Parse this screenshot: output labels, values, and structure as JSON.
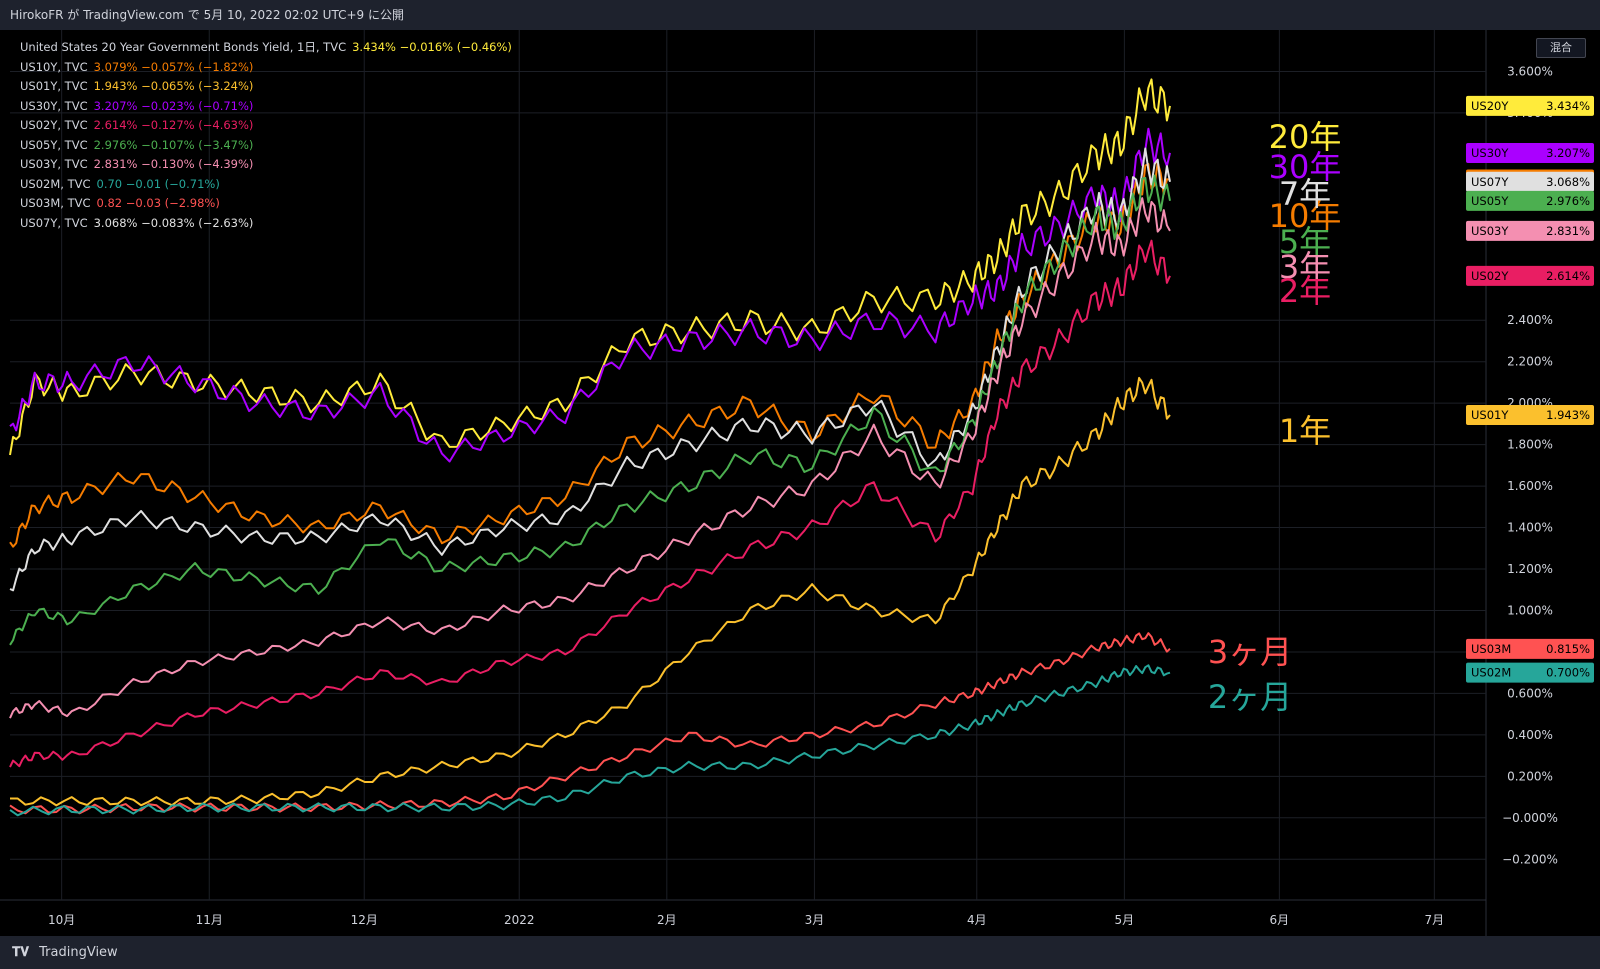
{
  "header": {
    "text": "HirokoFR が TradingView.com で 5月 10, 2022 02:02 UTC+9 に公開"
  },
  "footer": {
    "brand": "TradingView"
  },
  "toolbar": {
    "mixed_label": "混合"
  },
  "legend": [
    {
      "name": "United States 20 Year Government Bonds Yield, 1日, TVC",
      "value": "3.434%",
      "change": "−0.016% (−0.46%)",
      "color": "#ffeb3b"
    },
    {
      "name": "US10Y, TVC",
      "value": "3.079%",
      "change": "−0.057% (−1.82%)",
      "color": "#f57c00"
    },
    {
      "name": "US01Y, TVC",
      "value": "1.943%",
      "change": "−0.065% (−3.24%)",
      "color": "#fbc02d"
    },
    {
      "name": "US30Y, TVC",
      "value": "3.207%",
      "change": "−0.023% (−0.71%)",
      "color": "#aa00ff"
    },
    {
      "name": "US02Y, TVC",
      "value": "2.614%",
      "change": "−0.127% (−4.63%)",
      "color": "#e91e63"
    },
    {
      "name": "US05Y, TVC",
      "value": "2.976%",
      "change": "−0.107% (−3.47%)",
      "color": "#4caf50"
    },
    {
      "name": "US03Y, TVC",
      "value": "2.831%",
      "change": "−0.130% (−4.39%)",
      "color": "#f48fb1"
    },
    {
      "name": "US02M, TVC",
      "value": "0.70",
      "change": "−0.01 (−0.71%)",
      "color": "#26a69a"
    },
    {
      "name": "US03M, TVC",
      "value": "0.82",
      "change": "−0.03 (−2.98%)",
      "color": "#ff5252"
    },
    {
      "name": "US07Y, TVC",
      "value": "3.068%",
      "change": "−0.083% (−2.63%)",
      "color": "#e0e0e0"
    }
  ],
  "chart_data": {
    "type": "line",
    "x_labels": [
      "10月",
      "11月",
      "12月",
      "2022",
      "2月",
      "3月",
      "4月",
      "5月",
      "6月",
      "7月"
    ],
    "y_ticks": [
      "3.600%",
      "3.400%",
      "2.400%",
      "2.200%",
      "2.000%",
      "1.800%",
      "1.600%",
      "1.400%",
      "1.200%",
      "1.000%",
      "0.800%",
      "0.600%",
      "0.400%",
      "0.200%",
      "−0.000%",
      "−0.200%"
    ],
    "ylim": [
      -0.3,
      3.8
    ],
    "grid": true,
    "series": [
      {
        "id": "US20Y",
        "label": "20年",
        "color": "#ffeb3b",
        "price": "3.434%",
        "points": [
          [
            0,
            1.75
          ],
          [
            0.02,
            2.1
          ],
          [
            0.05,
            2.05
          ],
          [
            0.1,
            2.15
          ],
          [
            0.15,
            2.1
          ],
          [
            0.2,
            2.05
          ],
          [
            0.25,
            2.0
          ],
          [
            0.3,
            2.1
          ],
          [
            0.35,
            1.8
          ],
          [
            0.4,
            1.9
          ],
          [
            0.45,
            2.0
          ],
          [
            0.5,
            2.3
          ],
          [
            0.55,
            2.35
          ],
          [
            0.6,
            2.4
          ],
          [
            0.65,
            2.35
          ],
          [
            0.7,
            2.5
          ],
          [
            0.75,
            2.5
          ],
          [
            0.78,
            2.6
          ],
          [
            0.8,
            2.7
          ],
          [
            0.82,
            2.9
          ],
          [
            0.85,
            3.0
          ],
          [
            0.88,
            3.2
          ],
          [
            0.9,
            3.25
          ],
          [
            0.92,
            3.5
          ],
          [
            0.94,
            3.434
          ]
        ]
      },
      {
        "id": "US30Y",
        "label": "30年",
        "color": "#aa00ff",
        "price": "3.207%",
        "points": [
          [
            0,
            1.85
          ],
          [
            0.02,
            2.1
          ],
          [
            0.05,
            2.1
          ],
          [
            0.1,
            2.2
          ],
          [
            0.15,
            2.1
          ],
          [
            0.2,
            2.0
          ],
          [
            0.25,
            1.95
          ],
          [
            0.3,
            2.05
          ],
          [
            0.35,
            1.75
          ],
          [
            0.4,
            1.85
          ],
          [
            0.45,
            1.95
          ],
          [
            0.5,
            2.25
          ],
          [
            0.55,
            2.3
          ],
          [
            0.6,
            2.35
          ],
          [
            0.65,
            2.3
          ],
          [
            0.7,
            2.4
          ],
          [
            0.75,
            2.35
          ],
          [
            0.78,
            2.5
          ],
          [
            0.8,
            2.55
          ],
          [
            0.82,
            2.75
          ],
          [
            0.85,
            2.85
          ],
          [
            0.88,
            3.0
          ],
          [
            0.9,
            2.95
          ],
          [
            0.92,
            3.25
          ],
          [
            0.94,
            3.207
          ]
        ]
      },
      {
        "id": "US10Y",
        "label": "10年",
        "color": "#f57c00",
        "price": "3.079%",
        "points": [
          [
            0,
            1.3
          ],
          [
            0.02,
            1.5
          ],
          [
            0.05,
            1.55
          ],
          [
            0.1,
            1.65
          ],
          [
            0.15,
            1.55
          ],
          [
            0.2,
            1.45
          ],
          [
            0.25,
            1.4
          ],
          [
            0.3,
            1.5
          ],
          [
            0.35,
            1.35
          ],
          [
            0.4,
            1.45
          ],
          [
            0.45,
            1.55
          ],
          [
            0.5,
            1.8
          ],
          [
            0.55,
            1.9
          ],
          [
            0.6,
            2.0
          ],
          [
            0.65,
            1.85
          ],
          [
            0.7,
            2.05
          ],
          [
            0.75,
            1.8
          ],
          [
            0.78,
            2.0
          ],
          [
            0.8,
            2.3
          ],
          [
            0.82,
            2.5
          ],
          [
            0.85,
            2.7
          ],
          [
            0.88,
            2.9
          ],
          [
            0.9,
            2.85
          ],
          [
            0.92,
            3.1
          ],
          [
            0.94,
            3.079
          ]
        ]
      },
      {
        "id": "US07Y",
        "label": "7年",
        "color": "#e0e0e0",
        "price": "3.068%",
        "points": [
          [
            0,
            1.1
          ],
          [
            0.02,
            1.3
          ],
          [
            0.05,
            1.35
          ],
          [
            0.1,
            1.45
          ],
          [
            0.15,
            1.4
          ],
          [
            0.2,
            1.35
          ],
          [
            0.25,
            1.35
          ],
          [
            0.3,
            1.45
          ],
          [
            0.35,
            1.3
          ],
          [
            0.4,
            1.4
          ],
          [
            0.45,
            1.45
          ],
          [
            0.5,
            1.7
          ],
          [
            0.55,
            1.8
          ],
          [
            0.6,
            1.9
          ],
          [
            0.65,
            1.85
          ],
          [
            0.7,
            2.0
          ],
          [
            0.75,
            1.7
          ],
          [
            0.78,
            1.95
          ],
          [
            0.8,
            2.25
          ],
          [
            0.82,
            2.55
          ],
          [
            0.85,
            2.75
          ],
          [
            0.88,
            2.95
          ],
          [
            0.9,
            2.9
          ],
          [
            0.92,
            3.15
          ],
          [
            0.94,
            3.068
          ]
        ]
      },
      {
        "id": "US05Y",
        "label": "5年",
        "color": "#4caf50",
        "price": "2.976%",
        "points": [
          [
            0,
            0.85
          ],
          [
            0.02,
            1.0
          ],
          [
            0.05,
            0.95
          ],
          [
            0.1,
            1.1
          ],
          [
            0.15,
            1.2
          ],
          [
            0.2,
            1.15
          ],
          [
            0.25,
            1.1
          ],
          [
            0.3,
            1.35
          ],
          [
            0.35,
            1.2
          ],
          [
            0.4,
            1.25
          ],
          [
            0.45,
            1.3
          ],
          [
            0.5,
            1.5
          ],
          [
            0.55,
            1.6
          ],
          [
            0.6,
            1.75
          ],
          [
            0.65,
            1.7
          ],
          [
            0.7,
            1.95
          ],
          [
            0.75,
            1.65
          ],
          [
            0.78,
            1.9
          ],
          [
            0.8,
            2.2
          ],
          [
            0.82,
            2.5
          ],
          [
            0.85,
            2.7
          ],
          [
            0.88,
            2.9
          ],
          [
            0.9,
            2.85
          ],
          [
            0.92,
            3.05
          ],
          [
            0.94,
            2.976
          ]
        ]
      },
      {
        "id": "US03Y",
        "label": "3年",
        "color": "#f48fb1",
        "price": "2.831%",
        "points": [
          [
            0,
            0.5
          ],
          [
            0.02,
            0.55
          ],
          [
            0.05,
            0.5
          ],
          [
            0.1,
            0.65
          ],
          [
            0.15,
            0.75
          ],
          [
            0.2,
            0.8
          ],
          [
            0.25,
            0.85
          ],
          [
            0.3,
            0.95
          ],
          [
            0.35,
            0.9
          ],
          [
            0.4,
            1.0
          ],
          [
            0.45,
            1.05
          ],
          [
            0.5,
            1.2
          ],
          [
            0.55,
            1.35
          ],
          [
            0.6,
            1.5
          ],
          [
            0.65,
            1.6
          ],
          [
            0.7,
            1.85
          ],
          [
            0.75,
            1.6
          ],
          [
            0.78,
            1.85
          ],
          [
            0.8,
            2.15
          ],
          [
            0.82,
            2.4
          ],
          [
            0.85,
            2.6
          ],
          [
            0.88,
            2.8
          ],
          [
            0.9,
            2.75
          ],
          [
            0.92,
            2.95
          ],
          [
            0.94,
            2.831
          ]
        ]
      },
      {
        "id": "US02Y",
        "label": "2年",
        "color": "#e91e63",
        "price": "2.614%",
        "points": [
          [
            0,
            0.25
          ],
          [
            0.02,
            0.3
          ],
          [
            0.05,
            0.3
          ],
          [
            0.1,
            0.4
          ],
          [
            0.15,
            0.5
          ],
          [
            0.2,
            0.55
          ],
          [
            0.25,
            0.6
          ],
          [
            0.3,
            0.7
          ],
          [
            0.35,
            0.65
          ],
          [
            0.4,
            0.75
          ],
          [
            0.45,
            0.8
          ],
          [
            0.5,
            1.0
          ],
          [
            0.55,
            1.15
          ],
          [
            0.6,
            1.3
          ],
          [
            0.65,
            1.4
          ],
          [
            0.7,
            1.6
          ],
          [
            0.75,
            1.35
          ],
          [
            0.78,
            1.6
          ],
          [
            0.8,
            1.95
          ],
          [
            0.82,
            2.15
          ],
          [
            0.85,
            2.3
          ],
          [
            0.88,
            2.5
          ],
          [
            0.9,
            2.55
          ],
          [
            0.92,
            2.75
          ],
          [
            0.94,
            2.614
          ]
        ]
      },
      {
        "id": "US01Y",
        "label": "1年",
        "color": "#fbc02d",
        "price": "1.943%",
        "points": [
          [
            0,
            0.08
          ],
          [
            0.05,
            0.08
          ],
          [
            0.1,
            0.08
          ],
          [
            0.15,
            0.08
          ],
          [
            0.2,
            0.09
          ],
          [
            0.25,
            0.12
          ],
          [
            0.3,
            0.2
          ],
          [
            0.35,
            0.25
          ],
          [
            0.4,
            0.3
          ],
          [
            0.45,
            0.4
          ],
          [
            0.5,
            0.55
          ],
          [
            0.55,
            0.8
          ],
          [
            0.6,
            1.0
          ],
          [
            0.65,
            1.1
          ],
          [
            0.7,
            1.0
          ],
          [
            0.75,
            0.95
          ],
          [
            0.78,
            1.2
          ],
          [
            0.8,
            1.4
          ],
          [
            0.82,
            1.6
          ],
          [
            0.85,
            1.7
          ],
          [
            0.88,
            1.85
          ],
          [
            0.9,
            2.0
          ],
          [
            0.92,
            2.1
          ],
          [
            0.94,
            1.943
          ]
        ]
      },
      {
        "id": "US03M",
        "label": "3ヶ月",
        "color": "#ff5252",
        "price": "0.815%",
        "points": [
          [
            0,
            0.04
          ],
          [
            0.05,
            0.04
          ],
          [
            0.1,
            0.05
          ],
          [
            0.15,
            0.05
          ],
          [
            0.2,
            0.05
          ],
          [
            0.25,
            0.05
          ],
          [
            0.3,
            0.06
          ],
          [
            0.35,
            0.07
          ],
          [
            0.4,
            0.1
          ],
          [
            0.45,
            0.2
          ],
          [
            0.5,
            0.3
          ],
          [
            0.55,
            0.4
          ],
          [
            0.6,
            0.35
          ],
          [
            0.65,
            0.4
          ],
          [
            0.7,
            0.45
          ],
          [
            0.75,
            0.55
          ],
          [
            0.78,
            0.6
          ],
          [
            0.8,
            0.65
          ],
          [
            0.82,
            0.7
          ],
          [
            0.85,
            0.75
          ],
          [
            0.88,
            0.82
          ],
          [
            0.9,
            0.85
          ],
          [
            0.92,
            0.88
          ],
          [
            0.94,
            0.815
          ]
        ]
      },
      {
        "id": "US02M",
        "label": "2ヶ月",
        "color": "#26a69a",
        "price": "0.700%",
        "points": [
          [
            0,
            0.03
          ],
          [
            0.05,
            0.04
          ],
          [
            0.1,
            0.04
          ],
          [
            0.15,
            0.05
          ],
          [
            0.2,
            0.05
          ],
          [
            0.25,
            0.05
          ],
          [
            0.3,
            0.05
          ],
          [
            0.35,
            0.05
          ],
          [
            0.4,
            0.06
          ],
          [
            0.45,
            0.1
          ],
          [
            0.5,
            0.2
          ],
          [
            0.55,
            0.25
          ],
          [
            0.6,
            0.25
          ],
          [
            0.65,
            0.3
          ],
          [
            0.7,
            0.35
          ],
          [
            0.75,
            0.4
          ],
          [
            0.78,
            0.45
          ],
          [
            0.8,
            0.5
          ],
          [
            0.82,
            0.55
          ],
          [
            0.85,
            0.6
          ],
          [
            0.88,
            0.65
          ],
          [
            0.9,
            0.7
          ],
          [
            0.92,
            0.72
          ],
          [
            0.94,
            0.7
          ]
        ]
      }
    ]
  }
}
